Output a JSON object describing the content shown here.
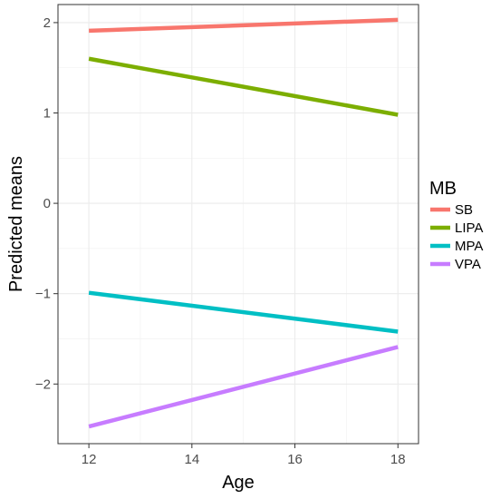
{
  "chart_data": {
    "type": "line",
    "title": "",
    "xlabel": "Age",
    "ylabel": "Predicted means",
    "xlim": [
      11.4,
      18.4
    ],
    "ylim": [
      -2.66,
      2.2
    ],
    "x_ticks": [
      12,
      14,
      16,
      18
    ],
    "x_tick_labels": [
      "12",
      "14",
      "16",
      "18"
    ],
    "y_ticks": [
      -2,
      -1,
      0,
      1,
      2
    ],
    "y_tick_labels": [
      "−2",
      "−1",
      "0",
      "1",
      "2"
    ],
    "grid": true,
    "legend": {
      "title": "MB",
      "position": "right"
    },
    "series": [
      {
        "name": "SB",
        "color": "#F8766D",
        "x": [
          12,
          18
        ],
        "y": [
          1.91,
          2.03
        ]
      },
      {
        "name": "LIPA",
        "color": "#7CAE00",
        "x": [
          12,
          18
        ],
        "y": [
          1.6,
          0.98
        ]
      },
      {
        "name": "MPA",
        "color": "#00BFC4",
        "x": [
          12,
          18
        ],
        "y": [
          -0.99,
          -1.42
        ]
      },
      {
        "name": "VPA",
        "color": "#C77CFF",
        "x": [
          12,
          18
        ],
        "y": [
          -2.47,
          -1.59
        ]
      }
    ]
  }
}
